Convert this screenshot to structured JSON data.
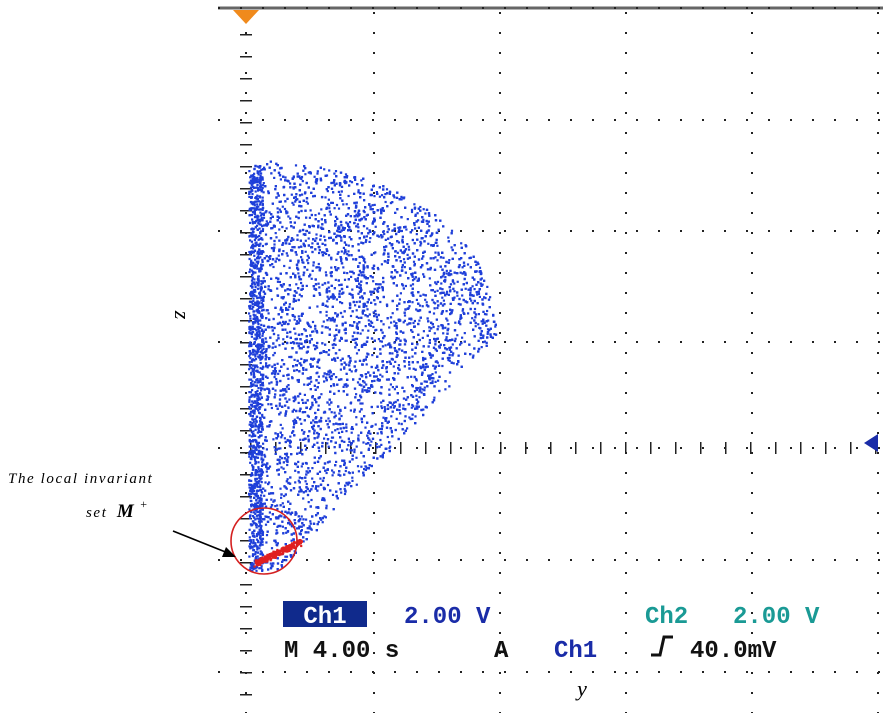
{
  "chart_data": {
    "type": "scatter",
    "title": "",
    "xlabel": "y",
    "ylabel": "z",
    "grid": true,
    "xlim": [
      0,
      20
    ],
    "ylim": [
      -8,
      8
    ],
    "series": [
      {
        "color": "#1f3fd9",
        "shape": "teardrop attractor cloud",
        "values": []
      },
      {
        "color": "#e02020",
        "shape": "local invariant set near origin",
        "values": []
      }
    ],
    "annotation": {
      "line1": "The local invariant",
      "line2_prefix": "set ",
      "symbol": "M",
      "superscript": "+"
    }
  },
  "scope": {
    "status_row1": {
      "ch1_label": "Ch1",
      "ch1_scale": "2.00 V",
      "ch2_label": "Ch2",
      "ch2_scale": "2.00 V"
    },
    "status_row2": {
      "timebase": "M 4.00 s",
      "trigger_mode": "A",
      "trigger_source": "Ch1",
      "trigger_level": "40.0mV"
    }
  },
  "colors": {
    "grid": "#222222",
    "ch1_highlight_bg": "#102a8c",
    "ch1_text": "#1a2ca8",
    "ch2_text": "#1a9a95",
    "marker_orange": "#f08a1c",
    "marker_blue": "#1a2ca8",
    "circle": "#d42020"
  }
}
